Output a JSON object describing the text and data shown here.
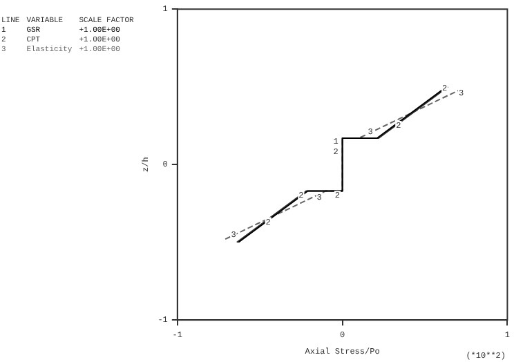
{
  "chart_data": {
    "type": "line",
    "xlabel": "Axial Stress/Po",
    "ylabel": "z/h",
    "xlim": [
      -1,
      1
    ],
    "xticks": [
      -1,
      0,
      1
    ],
    "ylim": [
      -1,
      1
    ],
    "yticks": [
      -1,
      0,
      1
    ],
    "grid": false,
    "legend": "top left",
    "marker": "none",
    "series": [
      {
        "name": "GSR",
        "color": "#000000",
        "line_style": "solid",
        "x": [
          -0.63,
          -0.21,
          0,
          0,
          0.21,
          0.63
        ],
        "values": [
          -0.5,
          -0.17,
          -0.17,
          0.17,
          0.17,
          0.5
        ]
      },
      {
        "name": "CPT",
        "color": "#333333",
        "line_style": "solid",
        "x": [
          -0.64,
          -0.22,
          0,
          0,
          0.22,
          0.64
        ],
        "values": [
          -0.5,
          -0.17,
          -0.17,
          0.17,
          0.17,
          0.5
        ]
      },
      {
        "name": "Elasticity",
        "color": "#666666",
        "line_style": "dashed",
        "x": [
          -0.71,
          -0.1,
          0,
          0,
          0.1,
          0.71
        ],
        "values": [
          -0.48,
          -0.17,
          -0.17,
          0.17,
          0.17,
          0.48
        ]
      }
    ],
    "annotations": [
      "LINE",
      "VARIABLE",
      "SCALE FACTOR",
      "1",
      "+1.00E+00",
      "2",
      "+1.00E+00",
      "3",
      "+1.00E+00",
      "(*10**2)",
      {
        "text": "1",
        "x": -0.04,
        "y": 0.15
      },
      {
        "text": "2",
        "x": -0.04,
        "y": 0.08
      },
      {
        "text": "2",
        "x": -0.03,
        "y": -0.2
      },
      {
        "text": "2",
        "x": -0.25,
        "y": -0.2
      },
      {
        "text": "3",
        "x": -0.14,
        "y": -0.21
      },
      {
        "text": "2",
        "x": -0.45,
        "y": -0.37
      },
      {
        "text": "3",
        "x": -0.66,
        "y": -0.45
      },
      {
        "text": "3",
        "x": 0.17,
        "y": 0.21
      },
      {
        "text": "2",
        "x": 0.34,
        "y": 0.25
      },
      {
        "text": "3",
        "x": 0.72,
        "y": 0.46
      },
      {
        "text": "2",
        "x": 0.62,
        "y": 0.49
      }
    ]
  }
}
